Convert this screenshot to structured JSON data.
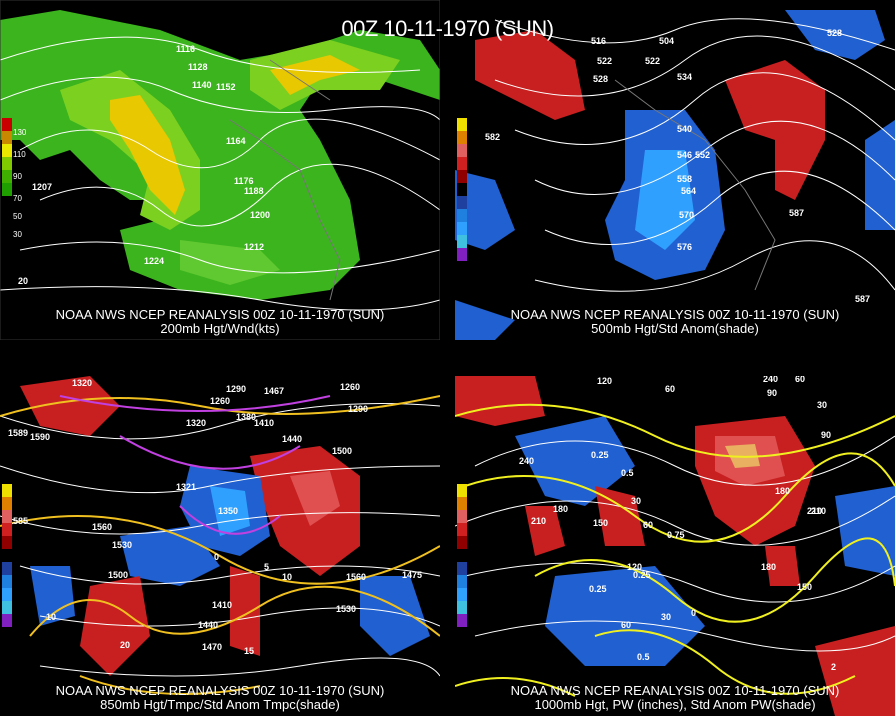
{
  "title": "00Z 10-11-1970 (SUN)",
  "source": "NOAA NWS NCEP REANALYSIS 00Z 10-11-1970 (SUN)",
  "panels": [
    {
      "id": "p1",
      "subtitle": "200mb Hgt/Wnd(kts)",
      "labels": [
        "1116",
        "1128",
        "1140",
        "1152",
        "1164",
        "1176",
        "1188",
        "1200",
        "1212",
        "1224",
        "1207",
        "20"
      ],
      "legend_values": [
        "130",
        "110",
        "90",
        "70",
        "50",
        "30"
      ],
      "legend_colors": [
        "#c80000",
        "#c88800",
        "#e8e800",
        "#80c800",
        "#40b000",
        "#20a000"
      ]
    },
    {
      "id": "p2",
      "subtitle": "500mb Hgt/Std Anom(shade)",
      "labels": [
        "516",
        "504",
        "522",
        "528",
        "534",
        "540",
        "546",
        "552",
        "558",
        "564",
        "570",
        "576",
        "582",
        "528",
        "522",
        "587",
        "587"
      ],
      "legend_values": [
        "5",
        "4",
        "3",
        "2",
        "1",
        "0",
        "1",
        "2",
        "3",
        "4",
        "5"
      ],
      "legend_colors": [
        "#f0e000",
        "#e08000",
        "#e06060",
        "#d02020",
        "#900000",
        "#000000",
        "#2040a0",
        "#2080e0",
        "#30a0ff",
        "#40c0e0",
        "#8020c0"
      ]
    },
    {
      "id": "p3",
      "subtitle": "850mb Hgt/Tmpc/Std Anom Tmpc(shade)",
      "labels": [
        "1320",
        "1290",
        "1260",
        "1320",
        "1380",
        "1410",
        "1440",
        "1500",
        "1350",
        "1290",
        "1260",
        "1590",
        "1560",
        "1530",
        "1500",
        "1560",
        "1530",
        "1470",
        "1440",
        "1410",
        "1585",
        "1321",
        "1467",
        "1475",
        "1589",
        "10",
        "20",
        "15",
        "10",
        "5",
        "0"
      ],
      "legend_values": [
        "5",
        "4",
        "3",
        "2",
        "1",
        "0",
        "1",
        "2",
        "3",
        "4",
        "5"
      ],
      "legend_colors": [
        "#f0e000",
        "#e08000",
        "#e06060",
        "#d02020",
        "#900000",
        "#000000",
        "#2040a0",
        "#2080e0",
        "#30a0ff",
        "#40c0e0",
        "#8020c0"
      ]
    },
    {
      "id": "p4",
      "subtitle": "1000mb Hgt, PW (inches), Std Anom PW(shade)",
      "labels": [
        "120",
        "60",
        "240",
        "210",
        "180",
        "150",
        "60",
        "30",
        "120",
        "60",
        "30",
        "0",
        "210",
        "180",
        "150",
        "90",
        "30",
        "90",
        "60",
        "180",
        "210",
        "240",
        "0.25",
        "0.5",
        "0.75",
        "0.25",
        "0.25",
        "0.5",
        "2"
      ],
      "legend_values": [
        "5",
        "4",
        "3",
        "2",
        "1",
        "0",
        "1",
        "2",
        "3",
        "4",
        "5"
      ],
      "legend_colors": [
        "#f0e000",
        "#e08000",
        "#e06060",
        "#d02020",
        "#900000",
        "#000000",
        "#2040a0",
        "#2080e0",
        "#30a0ff",
        "#40c0e0",
        "#8020c0"
      ]
    }
  ]
}
